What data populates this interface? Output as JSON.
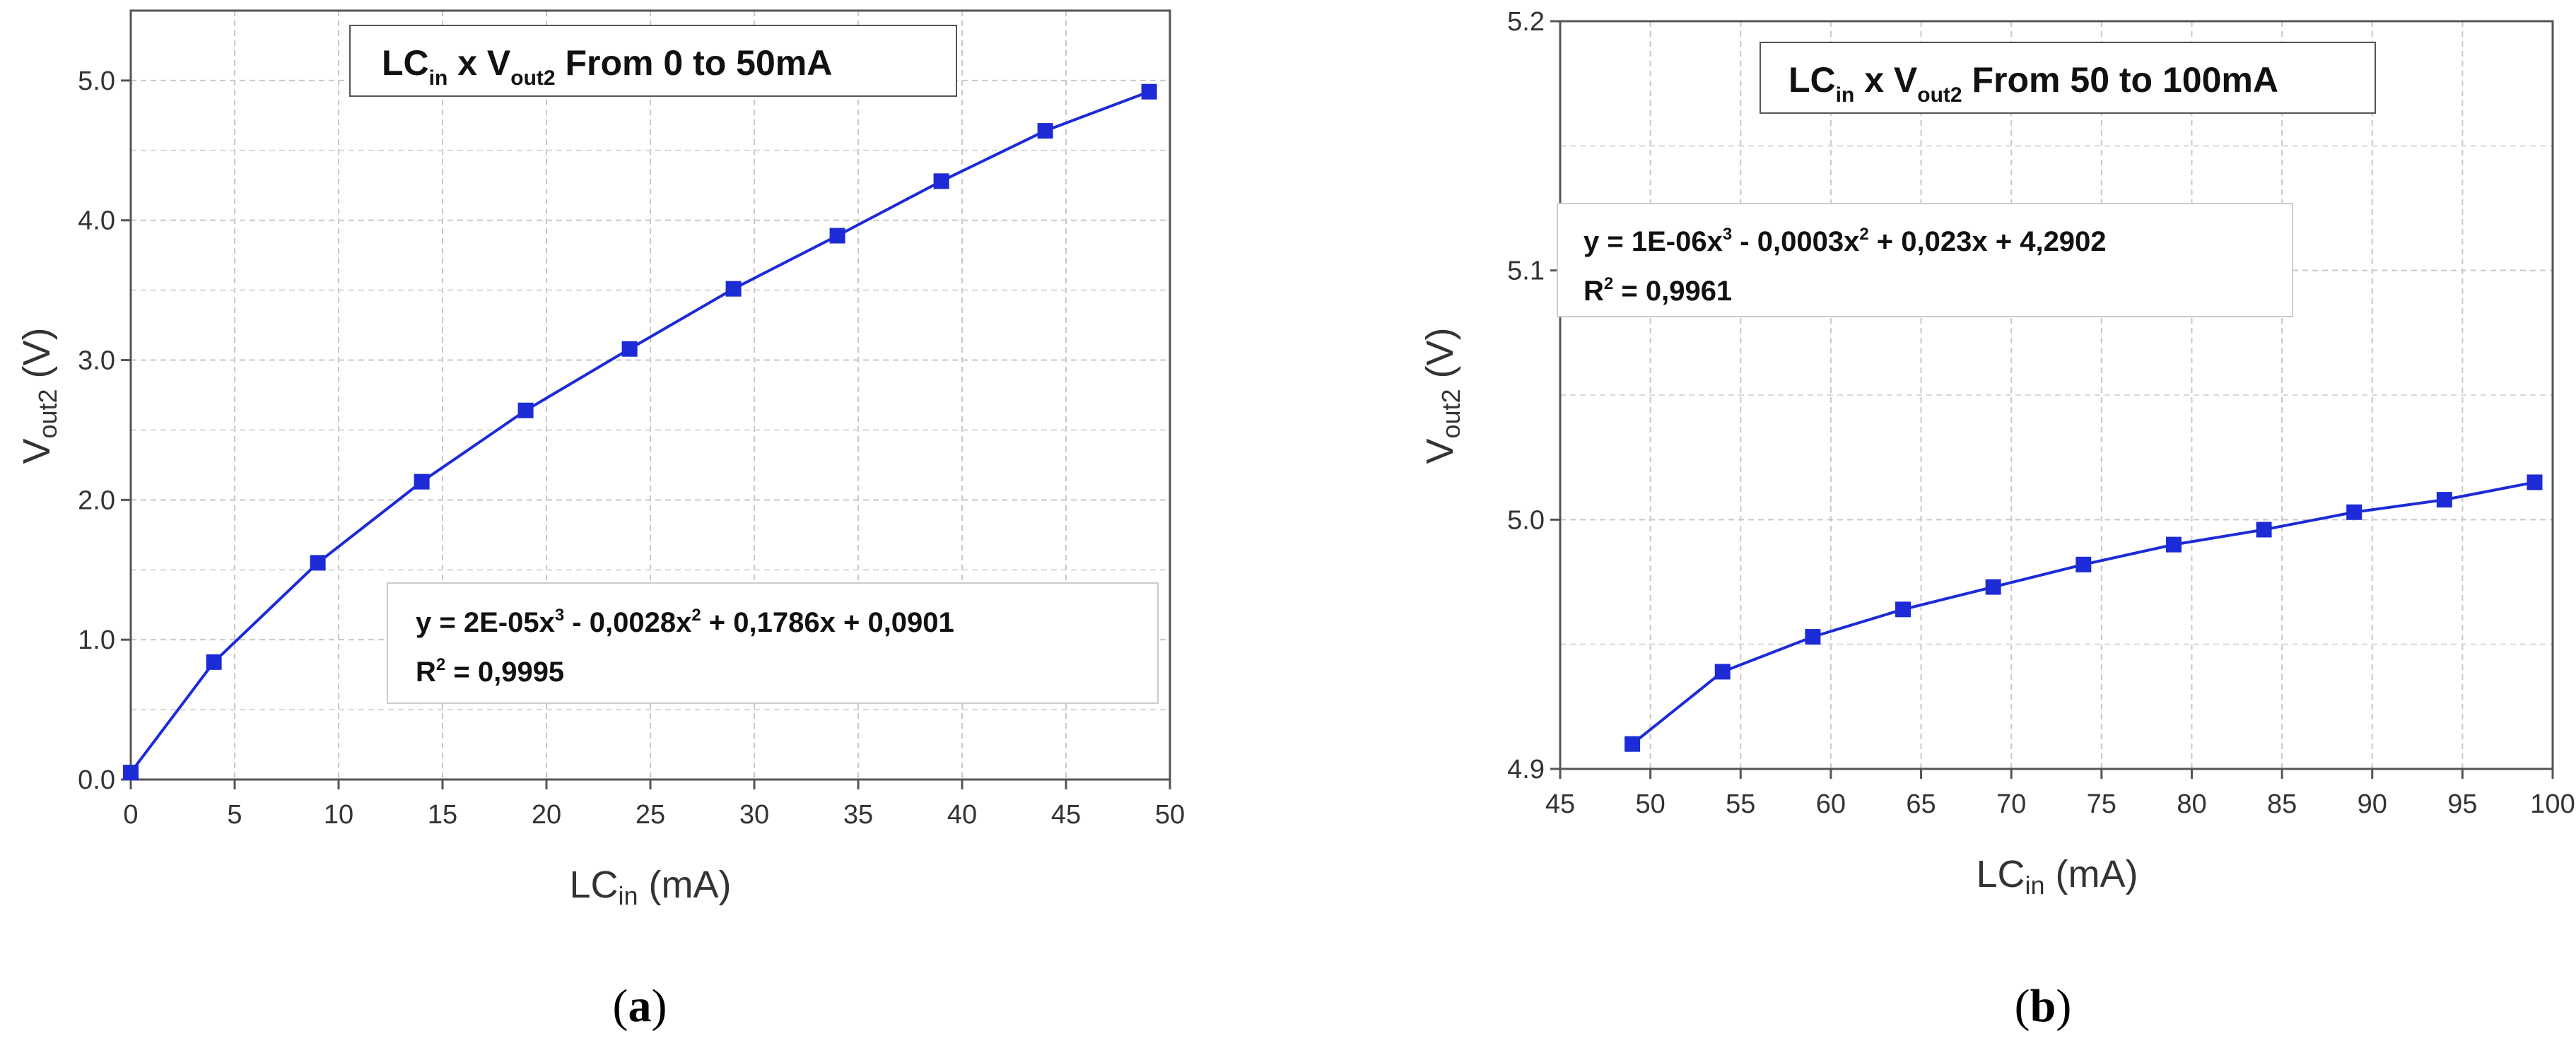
{
  "chart_data": [
    {
      "type": "line",
      "panel_label": {
        "open": "(",
        "letter": "a",
        "close": ")"
      },
      "title": {
        "prefix": "LC",
        "prefix_sub": "in",
        "mid": " x V",
        "mid_sub": "out2",
        "suffix": " From 0 to 50mA"
      },
      "xlabel": {
        "main": "LC",
        "sub": "in",
        "rest": " (mA)"
      },
      "ylabel": {
        "main": "V",
        "sub": "out2",
        "rest": " (V)"
      },
      "xlim": [
        0,
        50
      ],
      "ylim": [
        0,
        5.5
      ],
      "xticks": [
        "0",
        "5",
        "10",
        "15",
        "20",
        "25",
        "30",
        "35",
        "40",
        "45",
        "50"
      ],
      "yticks": [
        "0.0",
        "1.0",
        "2.0",
        "3.0",
        "4.0",
        "5.0"
      ],
      "grid": true,
      "marker": "square",
      "color": "#1c2bd6",
      "x": [
        0,
        4,
        9,
        14,
        19,
        24,
        29,
        34,
        39,
        44,
        49
      ],
      "y": [
        0.05,
        0.84,
        1.55,
        2.13,
        2.64,
        3.08,
        3.51,
        3.89,
        4.28,
        4.64,
        4.92
      ],
      "equation": {
        "line1_a": "y = 2E-05x",
        "sup1": "3",
        "line1_b": " - 0,0028x",
        "sup2": "2",
        "line1_c": " + 0,1786x + 0,0901",
        "r2_a": "R",
        "r2_sup": "2",
        "r2_b": " = 0,9995"
      }
    },
    {
      "type": "line",
      "panel_label": {
        "open": "(",
        "letter": "b",
        "close": ")"
      },
      "title": {
        "prefix": "LC",
        "prefix_sub": "in",
        "mid": " x V",
        "mid_sub": "out2",
        "suffix": " From 50 to 100mA"
      },
      "xlabel": {
        "main": "LC",
        "sub": "in",
        "rest": " (mA)"
      },
      "ylabel": {
        "main": "V",
        "sub": "out2",
        "rest": " (V)"
      },
      "xlim": [
        45,
        100
      ],
      "ylim": [
        4.9,
        5.2
      ],
      "xticks": [
        "45",
        "50",
        "55",
        "60",
        "65",
        "70",
        "75",
        "80",
        "85",
        "90",
        "95",
        "100"
      ],
      "yticks": [
        "4.9",
        "5.0",
        "5.1",
        "5.2"
      ],
      "grid": true,
      "marker": "square",
      "color": "#1c2bd6",
      "x": [
        49,
        54,
        59,
        64,
        69,
        74,
        79,
        84,
        89,
        94,
        99
      ],
      "y": [
        4.91,
        4.939,
        4.953,
        4.964,
        4.973,
        4.982,
        4.99,
        4.996,
        5.003,
        5.008,
        5.015
      ],
      "equation": {
        "line1_a": "y = 1E-06x",
        "sup1": "3",
        "line1_b": " - 0,0003x",
        "sup2": "2",
        "line1_c": " + 0,023x + 4,2902",
        "r2_a": "R",
        "r2_sup": "2",
        "r2_b": " = 0,9961"
      }
    }
  ]
}
